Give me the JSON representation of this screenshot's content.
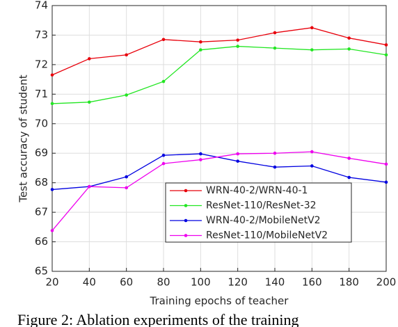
{
  "chart_data": {
    "type": "line",
    "x": [
      20,
      40,
      60,
      80,
      100,
      120,
      140,
      160,
      180,
      200
    ],
    "xlim": [
      20,
      200
    ],
    "xticks": [
      20,
      40,
      60,
      80,
      100,
      120,
      140,
      160,
      180,
      200
    ],
    "ylim": [
      65,
      74
    ],
    "yticks": [
      65,
      66,
      67,
      68,
      69,
      70,
      71,
      72,
      73,
      74
    ],
    "xlabel": "Training epochs of teacher",
    "ylabel": "Test accuracy of student",
    "grid": true,
    "legend": "lower-right",
    "series": [
      {
        "name": "WRN-40-2/WRN-40-1",
        "color": "#e8000b",
        "values": [
          71.65,
          72.2,
          72.33,
          72.85,
          72.77,
          72.83,
          73.08,
          73.25,
          72.9,
          72.67
        ]
      },
      {
        "name": "ResNet-110/ResNet-32",
        "color": "#22e622",
        "values": [
          70.68,
          70.73,
          70.97,
          71.43,
          72.5,
          72.62,
          72.56,
          72.5,
          72.53,
          72.33
        ]
      },
      {
        "name": "WRN-40-2/MobileNetV2",
        "color": "#0000e0",
        "values": [
          67.77,
          67.87,
          68.2,
          68.93,
          68.98,
          68.73,
          68.53,
          68.57,
          68.18,
          68.02
        ]
      },
      {
        "name": "ResNet-110/MobileNetV2",
        "color": "#ee00ee",
        "values": [
          66.38,
          67.87,
          67.83,
          68.65,
          68.78,
          68.98,
          69.0,
          69.05,
          68.83,
          68.63
        ]
      }
    ],
    "caption": "Figure 2: Ablation experiments of the training"
  }
}
